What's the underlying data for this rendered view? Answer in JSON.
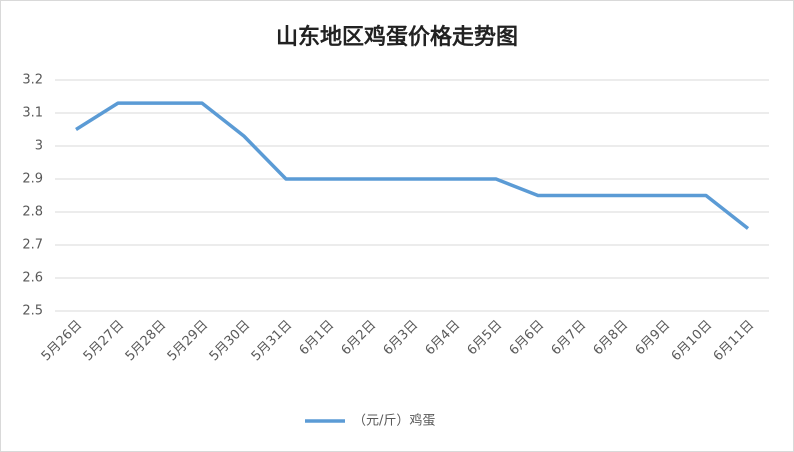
{
  "chart_data": {
    "type": "line",
    "title": "山东地区鸡蛋价格走势图",
    "categories": [
      "5月26日",
      "5月27日",
      "5月28日",
      "5月29日",
      "5月30日",
      "5月31日",
      "6月1日",
      "6月2日",
      "6月3日",
      "6月4日",
      "6月5日",
      "6月6日",
      "6月7日",
      "6月8日",
      "6月9日",
      "6月10日",
      "6月11日"
    ],
    "series": [
      {
        "name": "（元/斤）鸡蛋",
        "color": "#5b9bd5",
        "values": [
          3.05,
          3.13,
          3.13,
          3.13,
          3.03,
          2.9,
          2.9,
          2.9,
          2.9,
          2.9,
          2.9,
          2.85,
          2.85,
          2.85,
          2.85,
          2.85,
          2.75
        ]
      }
    ],
    "ylim": [
      2.5,
      3.2
    ],
    "yticks": [
      2.5,
      2.6,
      2.7,
      2.8,
      2.9,
      3,
      3.1,
      3.2
    ],
    "grid": true,
    "legend": "bottom"
  }
}
